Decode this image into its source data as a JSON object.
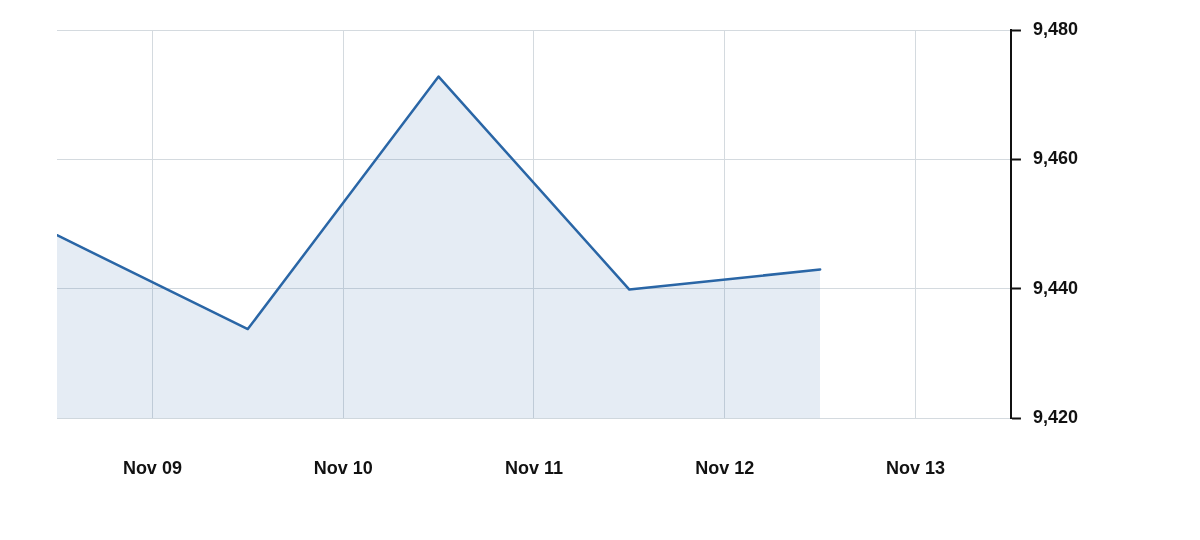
{
  "chart_data": {
    "type": "area",
    "categories": [
      null,
      "Nov 09",
      null,
      "Nov 10",
      null,
      "Nov 11",
      null,
      "Nov 12",
      null,
      "Nov 13",
      null
    ],
    "series": [
      {
        "color": "#2a66a6",
        "values": [
          9448.3,
          null,
          9433.8,
          null,
          9472.8,
          null,
          9439.9,
          null,
          9443,
          null,
          null
        ]
      }
    ],
    "ylim": [
      9420,
      9480
    ],
    "yticks": [
      {
        "value": 9420,
        "label": "9,420"
      },
      {
        "value": 9440,
        "label": "9,440"
      },
      {
        "value": 9460,
        "label": "9,460"
      },
      {
        "value": 9480,
        "label": "9,480"
      }
    ],
    "grid": true,
    "legend": false,
    "marker": "none",
    "line_style": "solid"
  }
}
